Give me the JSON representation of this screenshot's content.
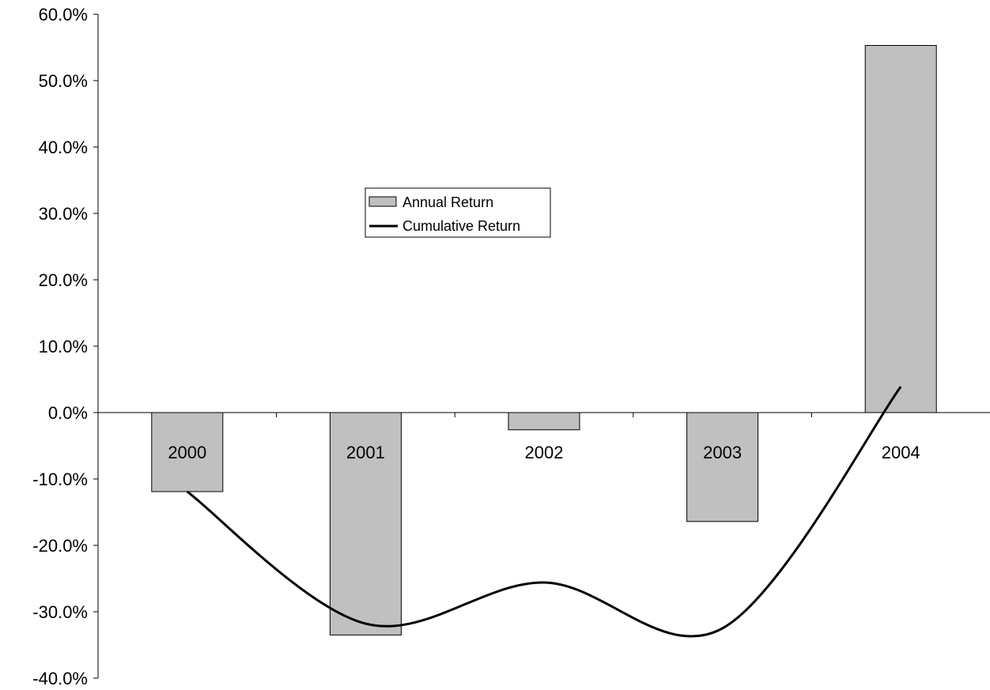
{
  "chart_data": {
    "type": "bar",
    "categories": [
      "2000",
      "2001",
      "2002",
      "2003",
      "2004"
    ],
    "series": [
      {
        "name": "Annual Return",
        "type": "bar",
        "values": [
          -11.9,
          -33.5,
          -2.6,
          -16.4,
          55.3
        ],
        "color": "#c0c0c0"
      },
      {
        "name": "Cumulative Return",
        "type": "line",
        "values": [
          -11.9,
          -31.8,
          -25.6,
          -32.5,
          3.9
        ],
        "color": "#000000"
      }
    ],
    "y_ticks": [
      "60.0%",
      "50.0%",
      "40.0%",
      "30.0%",
      "20.0%",
      "10.0%",
      "0.0%",
      "-10.0%",
      "-20.0%",
      "-30.0%",
      "-40.0%"
    ],
    "ylim": [
      -40,
      60
    ],
    "grid": false,
    "legend_position": "center"
  }
}
